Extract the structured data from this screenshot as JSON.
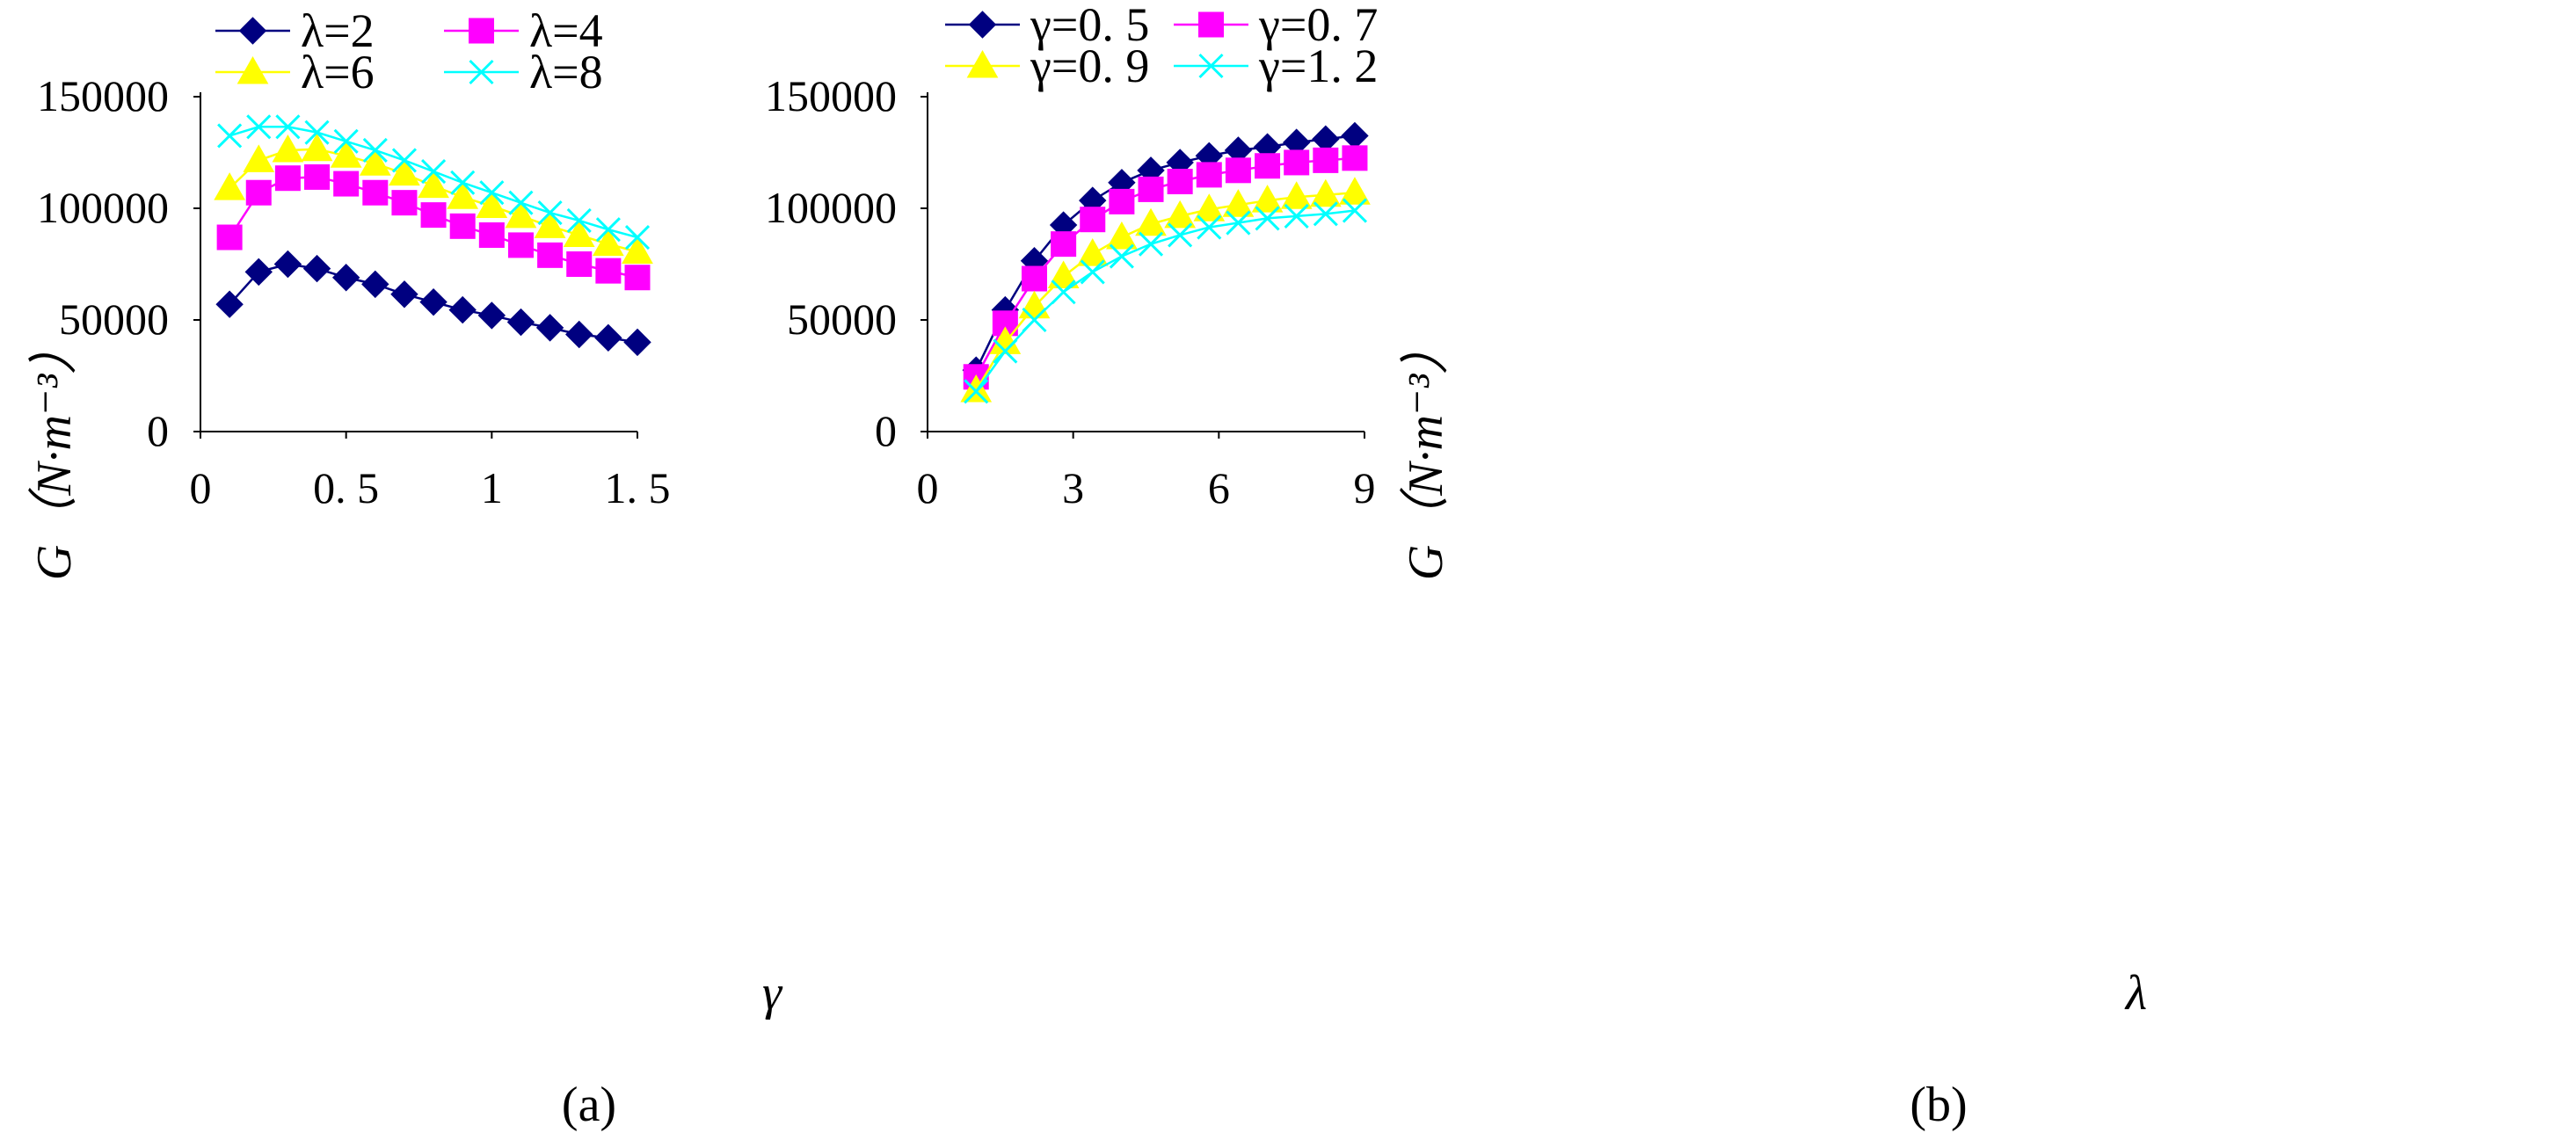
{
  "chart_data": [
    {
      "type": "line",
      "panel_label": "(a)",
      "xlabel": "γ",
      "ylabel": "G（N·m⁻³）",
      "xlim": [
        0,
        1.5
      ],
      "ylim": [
        0,
        150000
      ],
      "x_ticks": [
        0,
        0.5,
        1,
        1.5
      ],
      "x_tick_labels": [
        "0",
        "0. 5",
        "1",
        "1. 5"
      ],
      "y_ticks": [
        0,
        50000,
        100000,
        150000
      ],
      "y_tick_labels": [
        "0",
        "50000",
        "100000",
        "150000"
      ],
      "x": [
        0.1,
        0.2,
        0.3,
        0.4,
        0.5,
        0.6,
        0.7,
        0.8,
        0.9,
        1.0,
        1.1,
        1.2,
        1.3,
        1.4,
        1.5
      ],
      "series": [
        {
          "name": "λ=2",
          "color": "#000080",
          "marker": "diamond",
          "values": [
            57000,
            71500,
            75000,
            73000,
            69000,
            66000,
            61500,
            58000,
            54500,
            52000,
            49000,
            46500,
            43500,
            42000,
            40000
          ]
        },
        {
          "name": "λ=4",
          "color": "#ff00ff",
          "marker": "square",
          "values": [
            87000,
            107000,
            113500,
            114000,
            111000,
            107000,
            102500,
            97000,
            92000,
            88000,
            83500,
            79000,
            75000,
            72000,
            69000
          ]
        },
        {
          "name": "λ=6",
          "color": "#ffff00",
          "marker": "triangle",
          "values": [
            109000,
            121500,
            126000,
            126500,
            123500,
            120000,
            115500,
            110000,
            105000,
            101000,
            96500,
            92000,
            88000,
            84000,
            80500
          ]
        },
        {
          "name": "λ=8",
          "color": "#00ffff",
          "marker": "x",
          "values": [
            132500,
            136500,
            136500,
            134000,
            130000,
            126000,
            121500,
            116500,
            111500,
            107000,
            102500,
            98000,
            94500,
            90500,
            87000
          ]
        }
      ]
    },
    {
      "type": "line",
      "panel_label": "(b)",
      "xlabel": "λ",
      "ylabel": "G（N·m⁻³）",
      "xlim": [
        0,
        9
      ],
      "ylim": [
        0,
        150000
      ],
      "x_ticks": [
        0,
        3,
        6,
        9
      ],
      "x_tick_labels": [
        "0",
        "3",
        "6",
        "9"
      ],
      "y_ticks": [
        0,
        50000,
        100000,
        150000
      ],
      "y_tick_labels": [
        "0",
        "50000",
        "100000",
        "150000"
      ],
      "x": [
        1,
        1.6,
        2.2,
        2.8,
        3.4,
        4.0,
        4.6,
        5.2,
        5.8,
        6.4,
        7.0,
        7.6,
        8.2,
        8.8
      ],
      "series": [
        {
          "name": "γ=0. 5",
          "color": "#000080",
          "marker": "diamond",
          "values": [
            27500,
            54500,
            76500,
            92500,
            103500,
            111500,
            117000,
            120500,
            123500,
            126000,
            127500,
            129500,
            131000,
            132500
          ]
        },
        {
          "name": "γ=0. 7",
          "color": "#ff00ff",
          "marker": "square",
          "values": [
            24500,
            48500,
            68500,
            84000,
            95000,
            103000,
            108500,
            112000,
            115000,
            117000,
            119000,
            120500,
            121500,
            122500
          ]
        },
        {
          "name": "γ=0. 9",
          "color": "#ffff00",
          "marker": "triangle",
          "values": [
            18500,
            40000,
            56000,
            69500,
            79500,
            87000,
            93000,
            96500,
            99500,
            101500,
            103500,
            105000,
            106000,
            107000
          ]
        },
        {
          "name": "γ=1. 2",
          "color": "#00ffff",
          "marker": "x",
          "values": [
            18000,
            36000,
            50000,
            62500,
            71500,
            78500,
            84000,
            88000,
            91500,
            93500,
            95500,
            96500,
            97500,
            99000
          ]
        }
      ]
    }
  ]
}
